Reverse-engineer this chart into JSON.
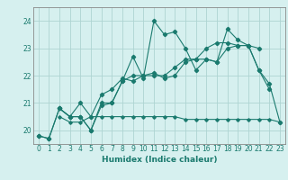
{
  "background_color": "#d6f0ef",
  "grid_color": "#aed4d2",
  "line_color": "#1a7a6e",
  "x_label": "Humidex (Indice chaleur)",
  "xlim": [
    -0.5,
    23.5
  ],
  "ylim": [
    19.5,
    24.5
  ],
  "yticks": [
    20,
    21,
    22,
    23,
    24
  ],
  "xticks": [
    0,
    1,
    2,
    3,
    4,
    5,
    6,
    7,
    8,
    9,
    10,
    11,
    12,
    13,
    14,
    15,
    16,
    17,
    18,
    19,
    20,
    21,
    22,
    23
  ],
  "series1_x": [
    0,
    1,
    2,
    3,
    4,
    5,
    6,
    7,
    8,
    9,
    10,
    11,
    12,
    13,
    14,
    15,
    16,
    17,
    18,
    19,
    20,
    21,
    22
  ],
  "series1_y": [
    19.8,
    19.7,
    20.8,
    20.5,
    20.5,
    20.0,
    20.9,
    21.0,
    21.8,
    22.7,
    21.9,
    24.0,
    23.5,
    23.6,
    23.0,
    22.2,
    22.6,
    22.5,
    23.7,
    23.3,
    23.1,
    22.2,
    21.5
  ],
  "series2_x": [
    0,
    1,
    2,
    3,
    4,
    5,
    6,
    7,
    8,
    9,
    10,
    11,
    12,
    13,
    14,
    15,
    16,
    17,
    18,
    19,
    20,
    21
  ],
  "series2_y": [
    19.8,
    19.7,
    20.8,
    20.5,
    21.0,
    20.5,
    21.3,
    21.5,
    21.9,
    21.8,
    22.0,
    22.0,
    22.0,
    22.3,
    22.6,
    22.6,
    23.0,
    23.2,
    23.2,
    23.1,
    23.1,
    23.0
  ],
  "series3_x": [
    2,
    3,
    4,
    5,
    6,
    7,
    8,
    9,
    10,
    11,
    12,
    13,
    14,
    15,
    16,
    17,
    18,
    19,
    20,
    21,
    22,
    23
  ],
  "series3_y": [
    20.5,
    20.3,
    20.3,
    20.5,
    20.5,
    20.5,
    20.5,
    20.5,
    20.5,
    20.5,
    20.5,
    20.5,
    20.4,
    20.4,
    20.4,
    20.4,
    20.4,
    20.4,
    20.4,
    20.4,
    20.4,
    20.3
  ],
  "series4_x": [
    2,
    3,
    4,
    5,
    6,
    7,
    8,
    9,
    10,
    11,
    12,
    13,
    14,
    15,
    16,
    17,
    18,
    19,
    20,
    21,
    22,
    23
  ],
  "series4_y": [
    20.8,
    20.5,
    20.5,
    20.0,
    21.0,
    21.0,
    21.8,
    22.0,
    22.0,
    22.1,
    21.9,
    22.0,
    22.5,
    22.6,
    22.6,
    22.5,
    23.0,
    23.1,
    23.1,
    22.2,
    21.7,
    20.3
  ]
}
